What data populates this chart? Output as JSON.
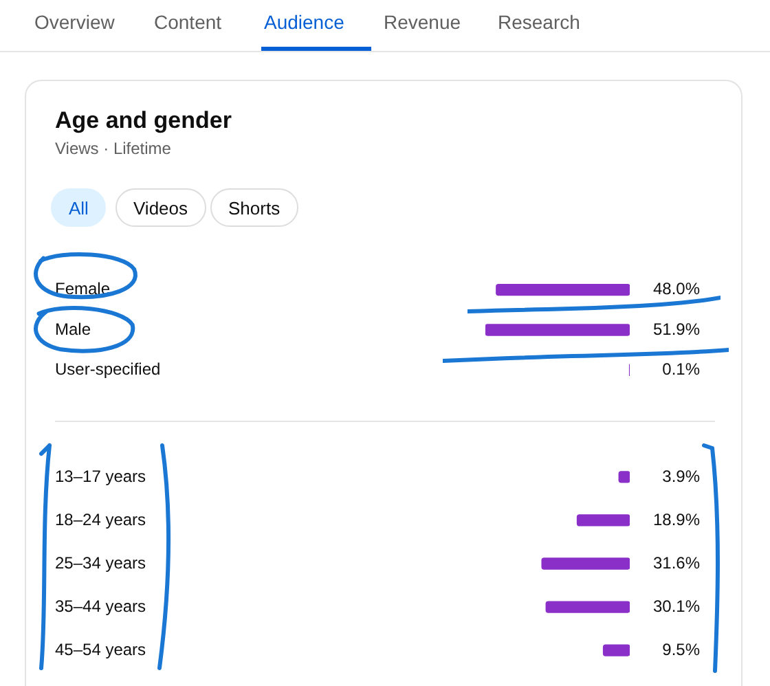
{
  "chart_data": [
    {
      "type": "other",
      "annotations": [
        "Overview",
        "Content",
        "Audience",
        "Revenue",
        "Research"
      ]
    },
    {
      "type": "bar",
      "orientation": "horizontal",
      "title": "Age and gender",
      "subtitle": "Views · Lifetime",
      "annotations": [
        "All",
        "Videos",
        "Shorts"
      ],
      "categories": [
        "Female",
        "Male",
        "User-specified"
      ],
      "values": [
        48.0,
        51.9,
        0.1
      ],
      "value_labels": [
        "48.0%",
        "51.9%",
        "0.1%"
      ],
      "color": "#8b2fc9",
      "tick_labels": "y"
    },
    {
      "type": "bar",
      "orientation": "horizontal",
      "categories": [
        "13–17 years",
        "18–24 years",
        "25–34 years",
        "35–44 years",
        "45–54 years"
      ],
      "values": [
        3.9,
        18.9,
        31.6,
        30.1,
        9.5
      ],
      "value_labels": [
        "3.9%",
        "18.9%",
        "31.6%",
        "30.1%",
        "9.5%"
      ],
      "color": "#8b2fc9",
      "tick_labels": "y"
    }
  ]
}
